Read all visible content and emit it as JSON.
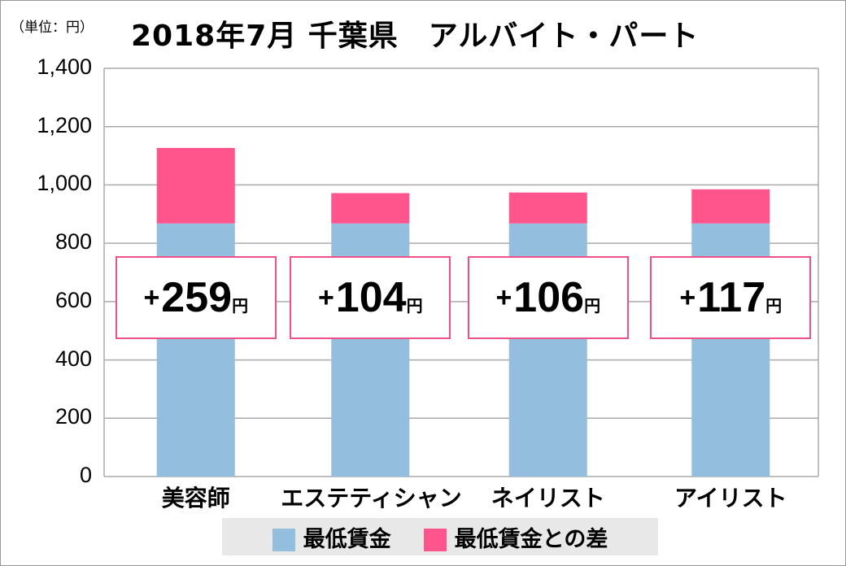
{
  "chart_data": {
    "type": "bar",
    "stacked": true,
    "title": "2018年7月 千葉県　アルバイト・パート",
    "unit_label": "（単位：円）",
    "categories": [
      "美容師",
      "エステティシャン",
      "ネイリスト",
      "アイリスト"
    ],
    "series": [
      {
        "name": "最低賃金",
        "values": [
          868,
          868,
          868,
          868
        ],
        "color": "#93BEDD"
      },
      {
        "name": "最低賃金との差",
        "values": [
          259,
          104,
          106,
          117
        ],
        "color": "#FF548C"
      }
    ],
    "diff_labels": [
      {
        "sign": "+",
        "value": "259",
        "unit": "円"
      },
      {
        "sign": "+",
        "value": "104",
        "unit": "円"
      },
      {
        "sign": "+",
        "value": "106",
        "unit": "円"
      },
      {
        "sign": "+",
        "value": "117",
        "unit": "円"
      }
    ],
    "ylim": [
      0,
      1400
    ],
    "yticks": [
      "0",
      "200",
      "400",
      "600",
      "800",
      "1,000",
      "1,200",
      "1,400"
    ],
    "grid": true,
    "legend": "bottom"
  }
}
